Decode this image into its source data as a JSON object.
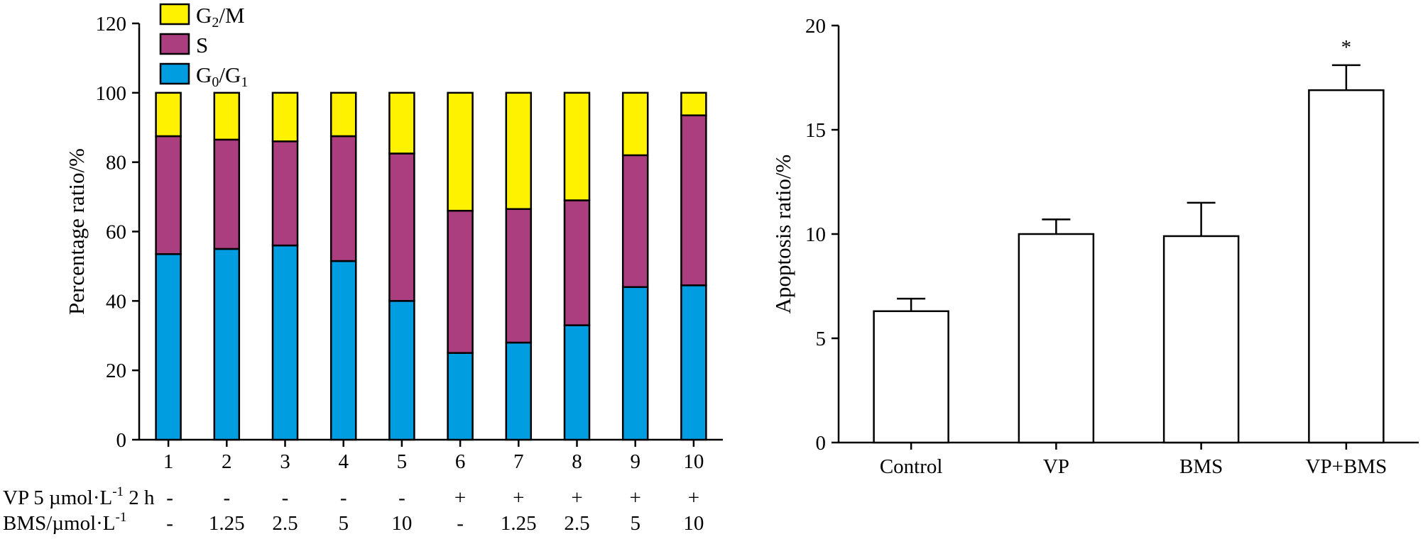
{
  "chart_data": [
    {
      "type": "bar",
      "stacked": true,
      "ylabel": "Percentage ratio/%",
      "ylim": [
        0,
        120
      ],
      "yticks": [
        0,
        20,
        40,
        60,
        80,
        100,
        120
      ],
      "categories": [
        "1",
        "2",
        "3",
        "4",
        "5",
        "6",
        "7",
        "8",
        "9",
        "10"
      ],
      "series": [
        {
          "name": "G0/G1",
          "legend_main": "G",
          "legend_sub1": "0",
          "legend_mid": "/G",
          "legend_sub2": "1",
          "color": "#009de0",
          "values": [
            53.5,
            55,
            56,
            51.5,
            40,
            25,
            28,
            33,
            44,
            44.5
          ]
        },
        {
          "name": "S",
          "legend_main": "S",
          "color": "#ab3e7f",
          "values": [
            34,
            31.5,
            30,
            36,
            42.5,
            41,
            38.5,
            36,
            38,
            49
          ]
        },
        {
          "name": "G2/M",
          "legend_main": "G",
          "legend_sub1": "2",
          "legend_mid": "/M",
          "color": "#fff200",
          "values": [
            12.5,
            13.5,
            14,
            12.5,
            17.5,
            34,
            33.5,
            31,
            18,
            6.5
          ]
        }
      ],
      "legend_position": "top-left",
      "conditions": [
        {
          "label_main": "VP 5 µmol·L",
          "label_sup": "-1",
          "label_tail": " 2 h",
          "values": [
            "-",
            "-",
            "-",
            "-",
            "-",
            "+",
            "+",
            "+",
            "+",
            "+"
          ]
        },
        {
          "label_main": "BMS/µmol·L",
          "label_sup": "-1",
          "label_tail": "",
          "values": [
            "-",
            "1.25",
            "2.5",
            "5",
            "10",
            "-",
            "1.25",
            "2.5",
            "5",
            "10"
          ]
        }
      ]
    },
    {
      "type": "bar",
      "ylabel": "Apoptosis ratio/%",
      "ylim": [
        0,
        20
      ],
      "yticks": [
        0,
        5,
        10,
        15,
        20
      ],
      "categories": [
        "Control",
        "VP",
        "BMS",
        "VP+BMS"
      ],
      "values": [
        6.3,
        10.0,
        9.9,
        16.9
      ],
      "errors": [
        0.6,
        0.7,
        1.6,
        1.2
      ],
      "annotations": [
        "",
        "",
        "",
        "*"
      ],
      "bar_color": "#ffffff"
    }
  ]
}
